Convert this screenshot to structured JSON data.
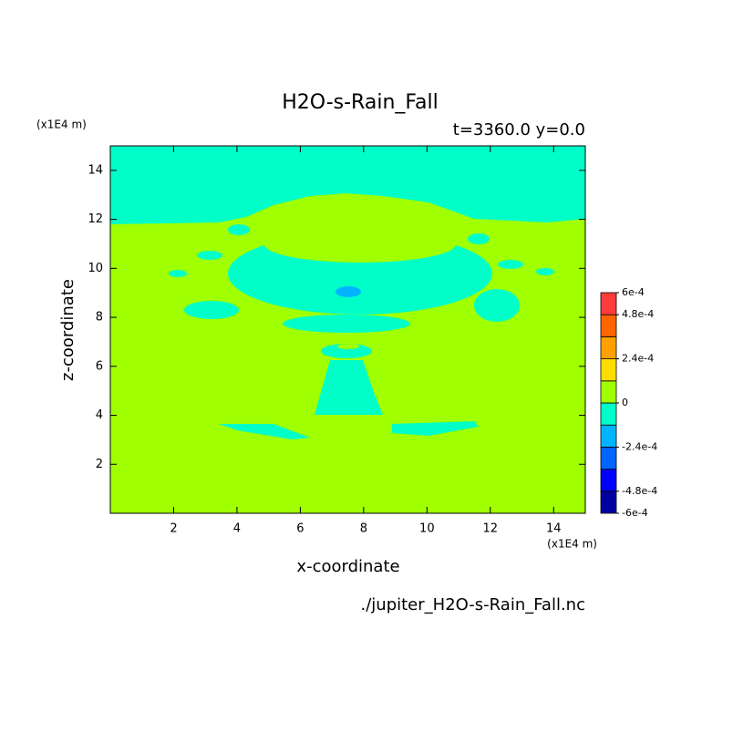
{
  "chart_data": {
    "type": "contour",
    "title": "H2O-s-Rain_Fall",
    "subtitle": "t=3360.0 y=0.0",
    "x_label": "x-coordinate",
    "y_label": "z-coordinate",
    "x_unit": "(x1E4 m)",
    "y_unit": "(x1E4 m)",
    "source": "./jupiter_H2O-s-Rain_Fall.nc",
    "xlim": [
      0,
      15
    ],
    "ylim": [
      0,
      15
    ],
    "xticks": [
      2,
      4,
      6,
      8,
      10,
      12,
      14
    ],
    "yticks": [
      2,
      4,
      6,
      8,
      10,
      12,
      14
    ],
    "colorbar": {
      "bounds": [
        -0.0006,
        -0.00048,
        -0.00036,
        -0.00024,
        -0.00012,
        0,
        0.00012,
        0.00024,
        0.00036,
        0.00048,
        0.0006
      ],
      "colors": [
        "#0000a0",
        "#0000ff",
        "#0064ff",
        "#00b4ff",
        "#00ffc8",
        "#a0ff00",
        "#ffdc00",
        "#ffa000",
        "#ff6400",
        "#ff3c3c"
      ],
      "ticks": [
        {
          "value": 0.0006,
          "label": "6e-4"
        },
        {
          "value": 0.00048,
          "label": "4.8e-4"
        },
        {
          "value": 0.00024,
          "label": "2.4e-4"
        },
        0,
        {
          "value": -0.00024,
          "label": "-2.4e-4"
        },
        {
          "value": -0.00048,
          "label": "-4.8e-4"
        },
        {
          "value": -0.0006,
          "label": "-6e-4"
        }
      ]
    }
  }
}
